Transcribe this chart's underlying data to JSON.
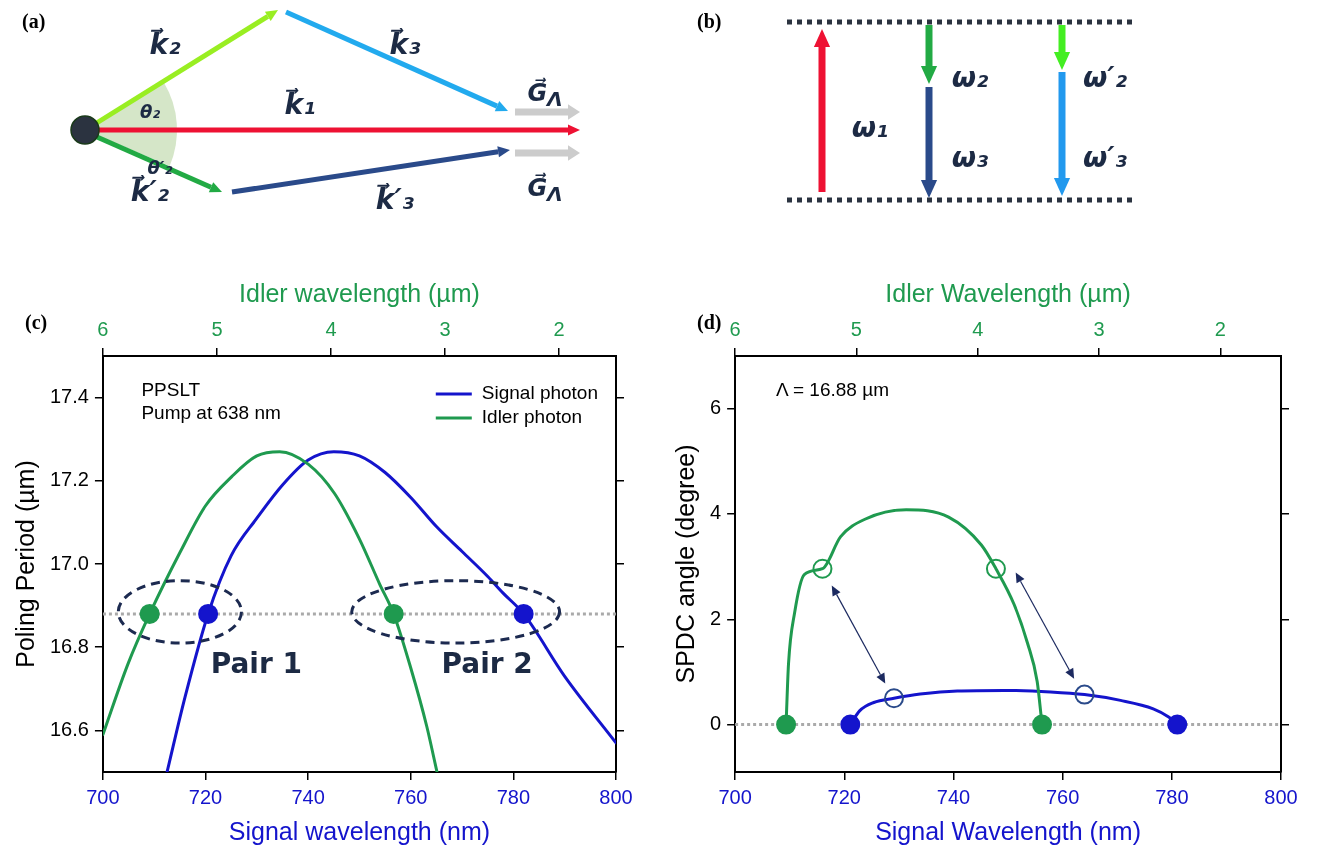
{
  "chart_data": [
    {
      "type": "other",
      "title": "(a)",
      "annotations": [
        "k⃗₂",
        "k⃗₃",
        "k⃗₁",
        "G⃗$_{Λ}$",
        "θ₂",
        "θ′₂",
        "k⃗′₂",
        "k⃗′₃",
        "G⃗$_{Λ}$"
      ]
    },
    {
      "type": "other",
      "title": "(b)",
      "annotations": [
        "ω₁",
        "ω₂",
        "ω₃",
        "ω′₂",
        "ω′₃"
      ]
    },
    {
      "type": "line",
      "title": "(c)",
      "xlabel": "Signal wavelength (nm)",
      "x2label": "Idler wavelength (µm)",
      "ylabel": "Poling Period (µm)",
      "xlim": [
        700,
        800
      ],
      "xticks": [
        700,
        720,
        740,
        760,
        780,
        800
      ],
      "x2lim": [
        6,
        1.5
      ],
      "x2ticks": [
        6,
        5,
        4,
        3,
        2
      ],
      "ylim": [
        16.5,
        17.5
      ],
      "yticks": [
        16.6,
        16.8,
        {
          "value": 17,
          "label": "17.0"
        },
        17.2,
        17.4
      ],
      "grid": false,
      "legend": "top right",
      "series": [
        {
          "name": "Signal photon",
          "type": "line",
          "color": "#1414cc",
          "marker": "none",
          "x": [
            712.5,
            716,
            720.5,
            725,
            730,
            735,
            740,
            745,
            750,
            755,
            760,
            765,
            770,
            775,
            778,
            782,
            790,
            800
          ],
          "values": [
            16.5,
            16.68,
            16.88,
            17.02,
            17.11,
            17.19,
            17.25,
            17.27,
            17.26,
            17.22,
            17.16,
            17.09,
            17.03,
            16.97,
            16.93,
            16.88,
            16.73,
            16.57
          ]
        },
        {
          "name": "Idler photon",
          "type": "line",
          "axis": "x2",
          "color": "#1f9a4f",
          "marker": "none",
          "x": [
            6,
            5.78,
            5.59,
            5.32,
            5.1,
            4.87,
            4.65,
            4.45,
            4.2,
            3.97,
            3.75,
            3.57,
            3.45,
            3.3,
            3.16,
            3.07
          ],
          "values": [
            16.59,
            16.76,
            16.88,
            17.03,
            17.14,
            17.21,
            17.26,
            17.27,
            17.24,
            17.17,
            17.06,
            16.95,
            16.88,
            16.75,
            16.61,
            16.5
          ]
        },
        {
          "type": "scatter",
          "axis": "x2",
          "color": "#1f9a4f",
          "marker": "circle",
          "x": [
            5.59,
            3.45
          ],
          "values": [
            16.88,
            16.88
          ]
        },
        {
          "type": "scatter",
          "color": "#1414cc",
          "marker": "circle",
          "x": [
            720.5,
            782
          ],
          "values": [
            16.88,
            16.88
          ]
        }
      ],
      "ref_lines": [
        {
          "axis": "y",
          "value": 16.88,
          "color": "#aaaaaa",
          "line_style": "dotted"
        }
      ],
      "annotations": [
        "PPSLT",
        "Pump at 638 nm",
        "Pair 1",
        "Pair 2"
      ]
    },
    {
      "type": "line",
      "title": "(d)",
      "xlabel": "Signal Wavelength (nm)",
      "x2label": "Idler Wavelength (µm)",
      "ylabel": "SPDC angle (degree)",
      "xlim": [
        700,
        800
      ],
      "xticks": [
        700,
        720,
        740,
        760,
        780,
        800
      ],
      "x2lim": [
        6,
        1.5
      ],
      "x2ticks": [
        6,
        5,
        4,
        3,
        2
      ],
      "ylim": [
        -0.9,
        7
      ],
      "yticks": [
        0,
        2,
        4,
        6
      ],
      "grid": false,
      "series": [
        {
          "type": "line",
          "color": "#1414cc",
          "marker": "none",
          "x": [
            721.1,
            722.8,
            725.4,
            729.1,
            733.9,
            740.7,
            749.3,
            757.8,
            764,
            770.6,
            776.6,
            779.5,
            781
          ],
          "values": [
            0,
            0.26,
            0.42,
            0.5,
            0.58,
            0.64,
            0.65,
            0.62,
            0.57,
            0.46,
            0.3,
            0.14,
            0
          ]
        },
        {
          "type": "line",
          "axis": "x2",
          "color": "#1f9a4f",
          "marker": "none",
          "x": [
            5.58,
            5.56,
            5.51,
            5.43,
            5.28,
            5.13,
            4.93,
            4.59,
            4.24,
            3.97,
            3.85,
            3.7,
            3.59,
            3.51,
            3.47
          ],
          "values": [
            0,
            1.15,
            2.12,
            2.85,
            2.96,
            3.57,
            3.9,
            4.08,
            3.94,
            3.41,
            2.96,
            2.28,
            1.55,
            0.82,
            0
          ]
        },
        {
          "type": "scatter",
          "axis": "x2",
          "color": "#1f9a4f",
          "marker": "circle",
          "x": [
            5.58,
            3.47
          ],
          "values": [
            0,
            0
          ]
        },
        {
          "type": "scatter",
          "color": "#1414cc",
          "marker": "circle",
          "x": [
            721.1,
            781
          ],
          "values": [
            0,
            0
          ]
        },
        {
          "type": "scatter",
          "axis": "x2",
          "color": "#1f9a4f",
          "marker": "circle",
          "x": [
            5.28,
            3.85
          ],
          "values": [
            2.96,
            2.96
          ]
        },
        {
          "type": "scatter",
          "color": "#2a4a8a",
          "marker": "circle",
          "x": [
            729.1,
            764
          ],
          "values": [
            0.5,
            0.57
          ]
        }
      ],
      "ref_lines": [
        {
          "axis": "y",
          "value": 0,
          "color": "#aaaaaa",
          "line_style": "dotted"
        }
      ],
      "annotations": [
        "Λ = 16.88 µm"
      ]
    }
  ]
}
